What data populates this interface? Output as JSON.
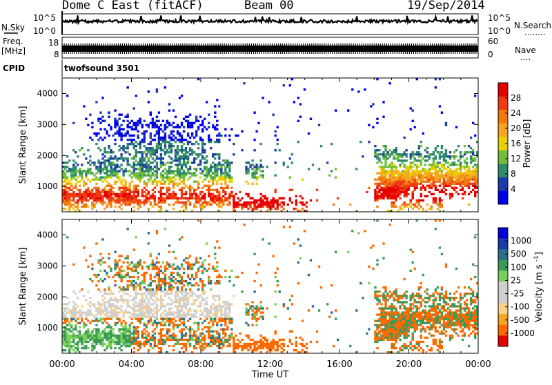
{
  "header": {
    "station": "Dome C East (fitACF)",
    "beam": "Beam 00",
    "date": "19/Sep/2014"
  },
  "colors": {
    "power_scale": [
      "#0000f0",
      "#1e3ca8",
      "#2e8a6a",
      "#6fbf3a",
      "#e8d000",
      "#f5a623",
      "#f07a10",
      "#ef3b12",
      "#e80000"
    ],
    "velocity_scale": [
      "#e80000",
      "#ff6a00",
      "#f5a623",
      "#fdd08a",
      "#cfcfcf",
      "#cfcfcf",
      "#7ad05a",
      "#3a9a5a",
      "#2e6e8a",
      "#1a3aa8",
      "#0000d8"
    ],
    "background": "#ffffff",
    "ink": "#000000"
  },
  "chart_data": [
    {
      "type": "line",
      "title": "N.Sky / N.Search",
      "ylabel_left": "N.Sky",
      "ylabel_right": "N.Search",
      "left_ticks": [
        "10^5",
        "10^0"
      ],
      "right_ticks": [
        "10^5",
        "10^0"
      ],
      "right_legend": "........",
      "x_range_hours": [
        0,
        24
      ],
      "baseline_log": 3.2
    },
    {
      "type": "line",
      "title": "Freq. / Nave",
      "ylabel_left": "Freq.",
      "ylabel_left_unit": "[MHz]",
      "ylabel_right": "Nave",
      "left_ticks": [
        "18",
        "8"
      ],
      "right_ticks": [
        "60",
        "0"
      ],
      "right_legend": "....",
      "x_range_hours": [
        0,
        24
      ],
      "freq_mhz": 11
    },
    {
      "type": "table",
      "label": "CPID",
      "programs": [
        {
          "name": "twofsound",
          "id": "3501",
          "start_hour": 0
        }
      ]
    },
    {
      "type": "heatmap",
      "ylabel": "Slant Range [km]",
      "y_ticks": [
        1000,
        2000,
        3000,
        4000
      ],
      "ylim": [
        180,
        4500
      ],
      "x_range_hours": [
        0,
        24
      ],
      "colorbar_label": "Power [dB]",
      "colorbar_ticks": [
        "28",
        "24",
        "20",
        "16",
        "12",
        "8",
        "4"
      ],
      "colorbar_range": [
        0,
        32
      ]
    },
    {
      "type": "heatmap",
      "ylabel": "Slant Range [km]",
      "y_ticks": [
        1000,
        2000,
        3000,
        4000
      ],
      "ylim": [
        180,
        4500
      ],
      "x_range_hours": [
        0,
        24
      ],
      "x_ticks": [
        "00:00",
        "04:00",
        "08:00",
        "12:00",
        "16:00",
        "20:00",
        "00:00"
      ],
      "xlabel": "Time UT",
      "colorbar_label": "Velocity",
      "colorbar_unit": "[m s",
      "colorbar_unit_sup": "-1",
      "colorbar_unit_end": "]",
      "colorbar_ticks": [
        "1000",
        "500",
        "100",
        "25",
        "-25",
        "-100",
        "-500",
        "-1000"
      ]
    }
  ]
}
